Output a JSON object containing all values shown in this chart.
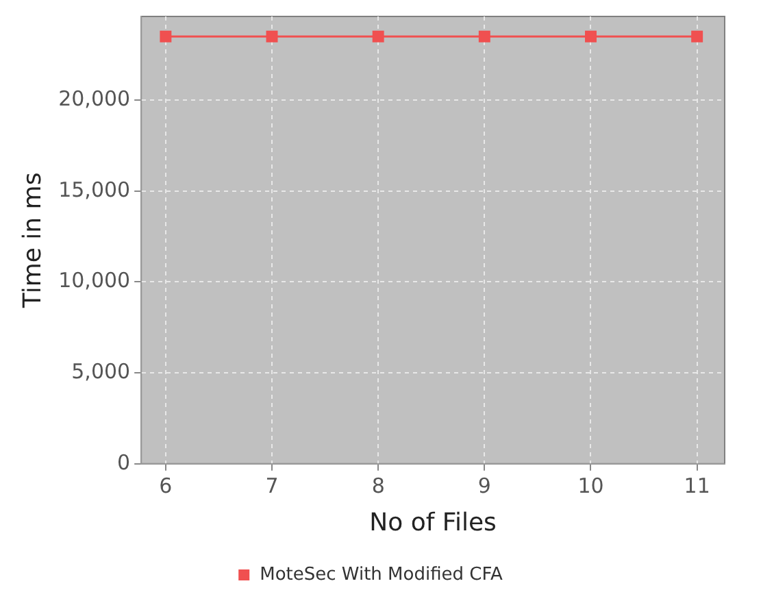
{
  "chart_data": {
    "type": "line",
    "xlabel": "No of Files",
    "ylabel": "Time in ms",
    "x": [
      6,
      7,
      8,
      9,
      10,
      11
    ],
    "series": [
      {
        "name": "MoteSec With Modified CFA",
        "color": "#f05050",
        "values": [
          23500,
          23500,
          23500,
          23500,
          23500,
          23500
        ]
      }
    ],
    "xlim": [
      5.77,
      11.26
    ],
    "xticks": [
      6,
      7,
      8,
      9,
      10,
      11
    ],
    "ylim": [
      0,
      24600
    ],
    "yticks": [
      {
        "value": 0,
        "label": "0"
      },
      {
        "value": 5000,
        "label": "5,000"
      },
      {
        "value": 10000,
        "label": "10,000"
      },
      {
        "value": 15000,
        "label": "15,000"
      },
      {
        "value": 20000,
        "label": "20,000"
      }
    ],
    "grid": true,
    "legend": "bottom",
    "marker": "square",
    "line_style": "solid"
  }
}
